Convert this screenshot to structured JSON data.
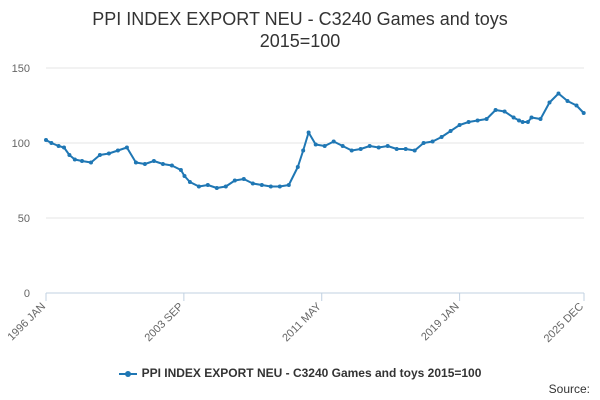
{
  "chart_data": {
    "type": "line",
    "title_line1": "PPI INDEX EXPORT NEU - C3240 Games and toys",
    "title_line2": "2015=100",
    "xlabel": "",
    "ylabel": "",
    "ylim": [
      0,
      150
    ],
    "yticks": [
      "0",
      "50",
      "100",
      "150"
    ],
    "xticks": [
      "1996 JAN",
      "2003 SEP",
      "2011 MAY",
      "2019 JAN",
      "2025 DEC"
    ],
    "grid": true,
    "legend_position": "bottom",
    "color": "#1f77b4",
    "series": [
      {
        "name": "PPI INDEX EXPORT NEU - C3240 Games and toys 2015=100",
        "x": [
          1996.0,
          1996.3,
          1996.7,
          1997.0,
          1997.3,
          1997.6,
          1998.0,
          1998.5,
          1999.0,
          1999.5,
          2000.0,
          2000.5,
          2001.0,
          2001.5,
          2002.0,
          2002.5,
          2003.0,
          2003.5,
          2003.7,
          2004.0,
          2004.5,
          2005.0,
          2005.5,
          2006.0,
          2006.5,
          2007.0,
          2007.5,
          2008.0,
          2008.5,
          2009.0,
          2009.5,
          2010.0,
          2010.3,
          2010.6,
          2011.0,
          2011.5,
          2012.0,
          2012.5,
          2013.0,
          2013.5,
          2014.0,
          2014.5,
          2015.0,
          2015.5,
          2016.0,
          2016.5,
          2017.0,
          2017.5,
          2018.0,
          2018.5,
          2019.0,
          2019.5,
          2020.0,
          2020.5,
          2021.0,
          2021.5,
          2022.0,
          2022.3,
          2022.5,
          2022.8,
          2023.0,
          2023.5,
          2024.0,
          2024.5,
          2025.0,
          2025.5,
          2025.9
        ],
        "values": [
          102,
          100,
          98,
          97,
          92,
          89,
          88,
          87,
          92,
          93,
          95,
          97,
          87,
          86,
          88,
          86,
          85,
          82,
          78,
          74,
          71,
          72,
          70,
          71,
          75,
          76,
          73,
          72,
          71,
          71,
          72,
          84,
          95,
          107,
          99,
          98,
          101,
          98,
          95,
          96,
          98,
          97,
          98,
          96,
          96,
          95,
          100,
          101,
          104,
          108,
          112,
          114,
          115,
          116,
          122,
          121,
          117,
          115,
          114,
          114,
          117,
          116,
          127,
          133,
          128,
          125,
          120
        ]
      }
    ]
  },
  "legend": {
    "label": "PPI INDEX EXPORT NEU - C3240 Games and toys 2015=100"
  },
  "source": {
    "label": "Source:"
  }
}
